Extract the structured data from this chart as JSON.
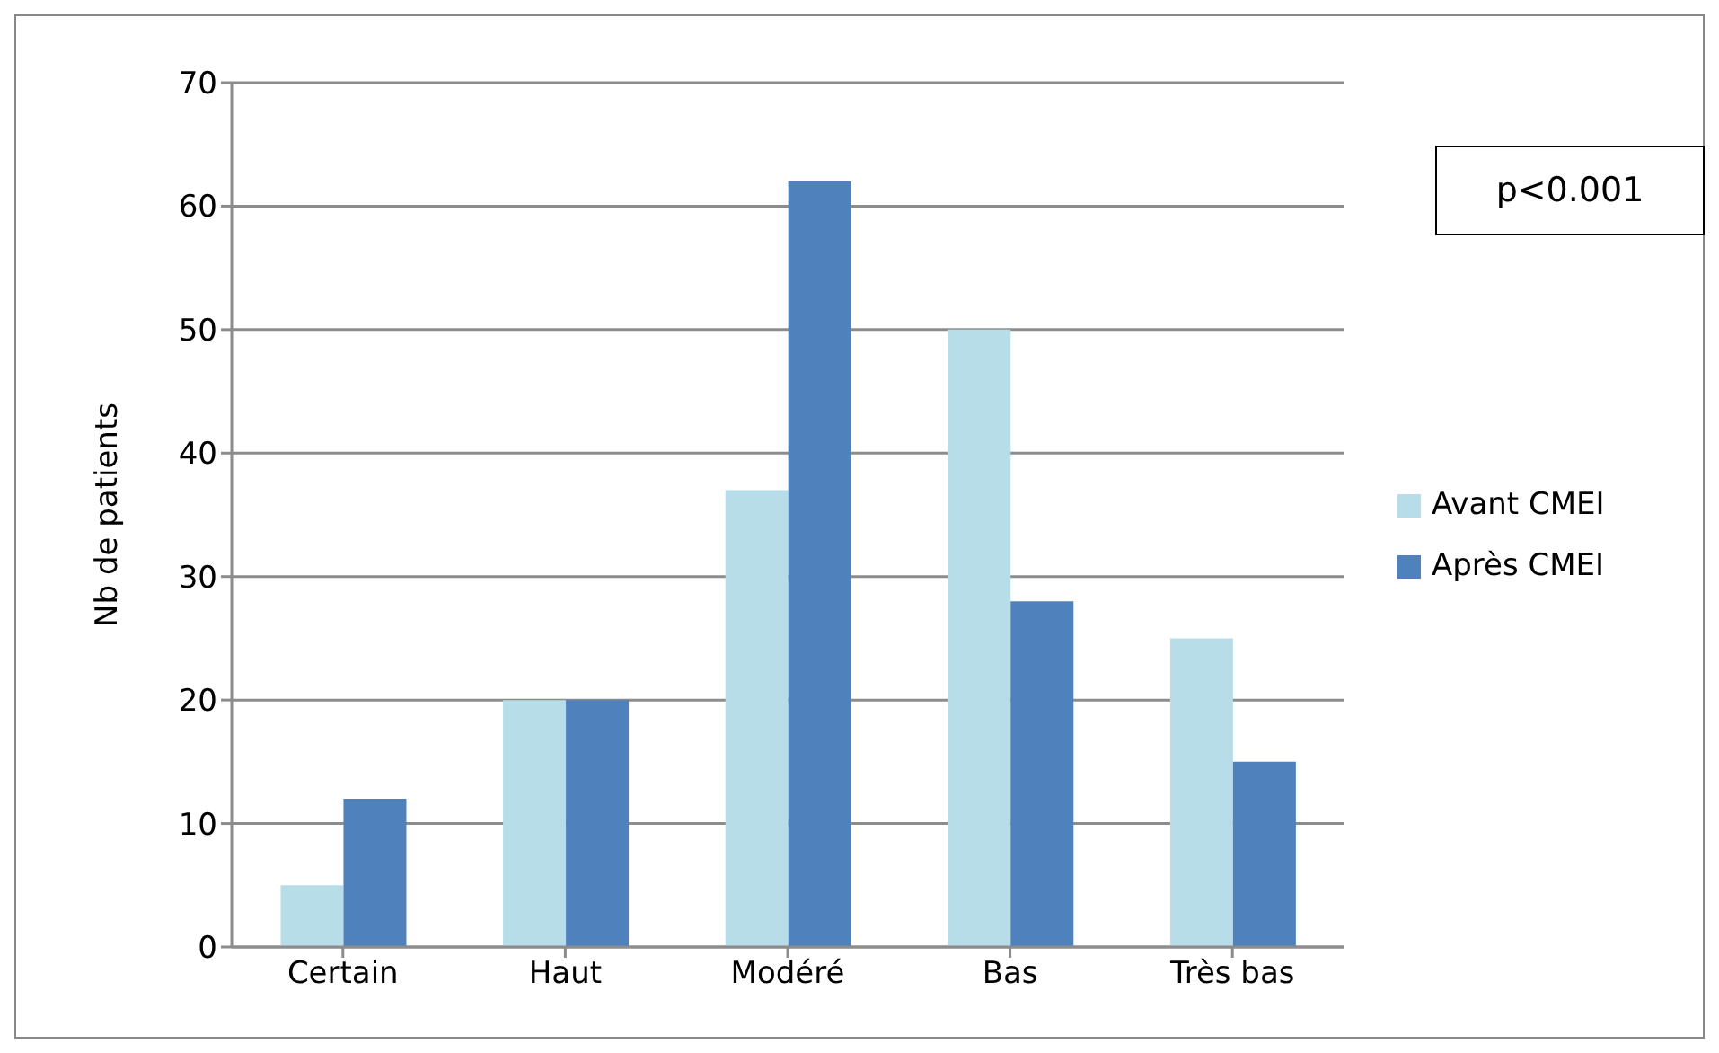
{
  "chart_data": {
    "type": "bar",
    "ylabel": "Nb de patients",
    "categories": [
      "Certain",
      "Haut",
      "Modéré",
      "Bas",
      "Très bas"
    ],
    "series": [
      {
        "name": "Avant CMEI",
        "color": "#b7dde8",
        "values": [
          5,
          20,
          37,
          50,
          25
        ]
      },
      {
        "name": "Après CMEI",
        "color": "#4f81bd",
        "values": [
          12,
          20,
          62,
          28,
          15
        ]
      }
    ],
    "ylim": [
      0,
      70
    ],
    "yticks": [
      0,
      10,
      20,
      30,
      40,
      50,
      60,
      70
    ],
    "grid": "y",
    "legend": "right",
    "annotations": [
      "p<0.001"
    ]
  }
}
